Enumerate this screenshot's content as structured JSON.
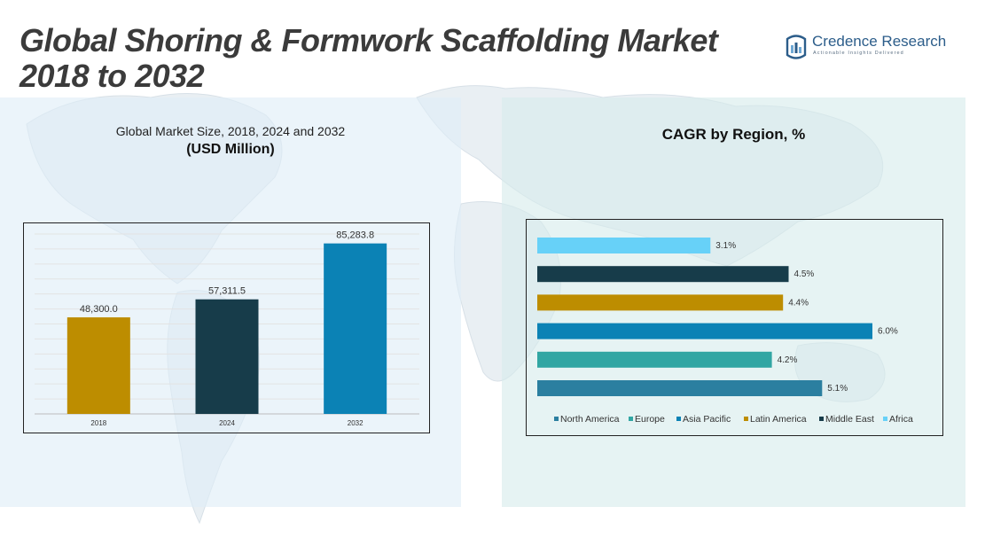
{
  "title_line1": "Global Shoring & Formwork Scaffolding Market",
  "title_line2": "2018 to 2032",
  "logo": {
    "name": "Credence Research",
    "tagline": "Actionable Insights Delivered"
  },
  "left_chart": {
    "subtitle": "Global Market Size, 2018, 2024 and 2032",
    "unit": "(USD Million)"
  },
  "right_chart": {
    "title": "CAGR by Region, %"
  },
  "colors": {
    "gold": "#BD8D00",
    "navy": "#173C4A",
    "blue": "#0B82B5",
    "teal": "#31A6A3",
    "steel": "#2B7FA0",
    "sky": "#67D1F8"
  },
  "chart_data": [
    {
      "type": "bar",
      "title": "Global Market Size, 2018, 2024 and 2032",
      "ylabel": "(USD Million)",
      "categories": [
        "2018",
        "2024",
        "2032"
      ],
      "values": [
        48300.0,
        57311.5,
        85283.8
      ],
      "value_labels": [
        "48,300.0",
        "57,311.5",
        "85,283.8"
      ],
      "bar_colors": [
        "#BD8D00",
        "#173C4A",
        "#0B82B5"
      ],
      "ylim": [
        0,
        90000
      ],
      "grid": true
    },
    {
      "type": "bar",
      "orientation": "horizontal",
      "title": "CAGR by Region, %",
      "categories": [
        "Africa",
        "Middle East",
        "Latin America",
        "Asia Pacific",
        "Europe",
        "North America"
      ],
      "values": [
        3.1,
        4.5,
        4.4,
        6.0,
        4.2,
        5.1
      ],
      "value_labels": [
        "3.1%",
        "4.5%",
        "4.4%",
        "6.0%",
        "4.2%",
        "5.1%"
      ],
      "bar_colors": [
        "#67D1F8",
        "#173C4A",
        "#BD8D00",
        "#0B82B5",
        "#31A6A3",
        "#2B7FA0"
      ],
      "legend": [
        "North America",
        "Europe",
        "Asia Pacific",
        "Latin America",
        "Middle East",
        "Africa"
      ],
      "legend_colors": [
        "#2B7FA0",
        "#31A6A3",
        "#0B82B5",
        "#BD8D00",
        "#173C4A",
        "#67D1F8"
      ],
      "legend_position": "bottom",
      "xlim": [
        0,
        6.0
      ],
      "grid": false
    }
  ]
}
